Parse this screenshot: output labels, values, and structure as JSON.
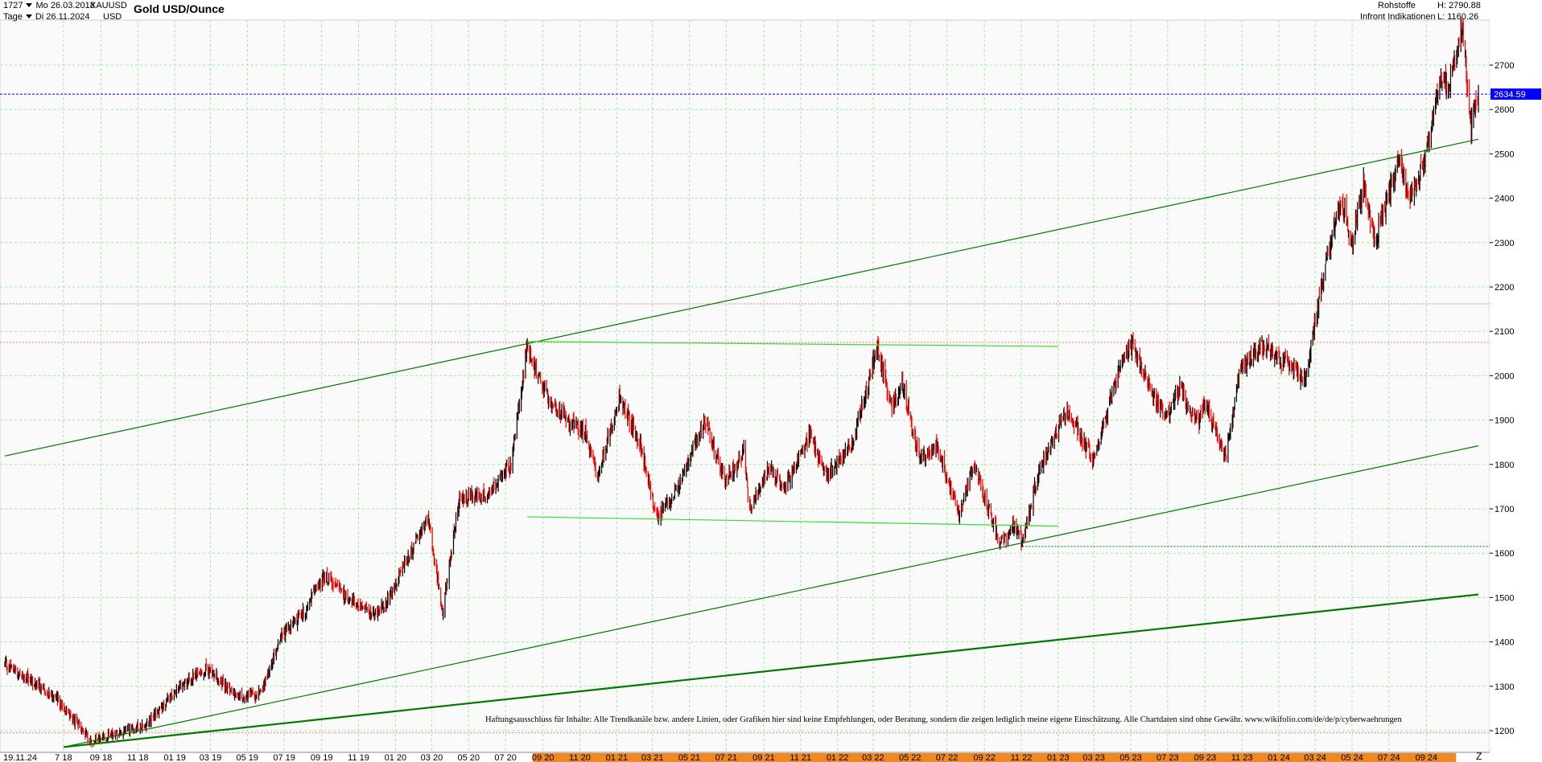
{
  "header": {
    "bar_count": "1727",
    "start_date": "Mo 26.03.2018",
    "symbol": "XAUUSD",
    "interval": "Tage",
    "end_date": "Di 26.11.2024",
    "currency": "USD",
    "title": "Gold USD/Ounce",
    "category": "Rohstoffe",
    "source": "Infront Indikationen",
    "high": "H: 2790.88",
    "low": "L: 1160.26"
  },
  "disclaimer": "Haftungsausschluss für Inhalte: Alle Trendkanäle bzw. andere Linien, oder Grafiken hier sind keine Empfehlungen, oder Beratung, sondern die zeigen lediglich meine eigene Einschätzung. Alle Chartdaten sind ohne Gewähr.   www.wikifolio.com/de/de/p/cyberwaehrungen",
  "bottom_right_letter": "Z",
  "colors": {
    "up": "#000000",
    "down": "#ff0000",
    "grid": "#99ee99",
    "trend": "#007700",
    "range": "#33dd33",
    "price_tag": "#0000ff",
    "dotted_red": "#ff7777",
    "highlight": "#ee8822"
  },
  "chart_data": {
    "type": "candlestick",
    "title": "Gold USD/Ounce",
    "ylim": [
      1150,
      2800
    ],
    "xlim": [
      "2018-03-26",
      "2024-11-26"
    ],
    "y_ticks": [
      1200,
      1300,
      1400,
      1500,
      1600,
      1700,
      1800,
      1900,
      2000,
      2100,
      2200,
      2300,
      2400,
      2500,
      2600,
      2700
    ],
    "x_ticks": [
      {
        "date": "2018-07-01",
        "label": "7 18"
      },
      {
        "date": "2018-09-01",
        "label": "09 18"
      },
      {
        "date": "2018-11-01",
        "label": "11 18"
      },
      {
        "date": "2019-01-01",
        "label": "01 19"
      },
      {
        "date": "2019-03-01",
        "label": "03 19"
      },
      {
        "date": "2019-05-01",
        "label": "05 19"
      },
      {
        "date": "2019-07-01",
        "label": "07 19"
      },
      {
        "date": "2019-09-01",
        "label": "09 19"
      },
      {
        "date": "2019-11-01",
        "label": "11 19"
      },
      {
        "date": "2020-01-01",
        "label": "01 20"
      },
      {
        "date": "2020-03-01",
        "label": "03 20"
      },
      {
        "date": "2020-05-01",
        "label": "05 20"
      },
      {
        "date": "2020-07-01",
        "label": "07 20"
      },
      {
        "date": "2020-09-01",
        "label": "09 20"
      },
      {
        "date": "2020-11-01",
        "label": "11 20"
      },
      {
        "date": "2021-01-01",
        "label": "01 21"
      },
      {
        "date": "2021-03-01",
        "label": "03 21"
      },
      {
        "date": "2021-05-01",
        "label": "05 21"
      },
      {
        "date": "2021-07-01",
        "label": "07 21"
      },
      {
        "date": "2021-09-01",
        "label": "09 21"
      },
      {
        "date": "2021-11-01",
        "label": "11 21"
      },
      {
        "date": "2022-01-01",
        "label": "01 22"
      },
      {
        "date": "2022-03-01",
        "label": "03 22"
      },
      {
        "date": "2022-05-01",
        "label": "05 22"
      },
      {
        "date": "2022-07-01",
        "label": "07 22"
      },
      {
        "date": "2022-09-01",
        "label": "09 22"
      },
      {
        "date": "2022-11-01",
        "label": "11 22"
      },
      {
        "date": "2023-01-01",
        "label": "01 23"
      },
      {
        "date": "2023-03-01",
        "label": "03 23"
      },
      {
        "date": "2023-05-01",
        "label": "05 23"
      },
      {
        "date": "2023-07-01",
        "label": "07 23"
      },
      {
        "date": "2023-09-01",
        "label": "09 23"
      },
      {
        "date": "2023-11-01",
        "label": "11 23"
      },
      {
        "date": "2024-01-01",
        "label": "01 24"
      },
      {
        "date": "2024-03-01",
        "label": "03 24"
      },
      {
        "date": "2024-05-01",
        "label": "05 24"
      },
      {
        "date": "2024-07-01",
        "label": "07 24"
      },
      {
        "date": "2024-09-01",
        "label": "09 24"
      }
    ],
    "cursor_date_label": "19.11.24",
    "highlight_range": [
      "2020-08-15",
      "2024-10-20"
    ],
    "last_price": 2634.59,
    "last_price_label": "2634.59",
    "price_series": [
      {
        "date": "2018-03-26",
        "price": 1350
      },
      {
        "date": "2018-05-01",
        "price": 1318
      },
      {
        "date": "2018-06-15",
        "price": 1280
      },
      {
        "date": "2018-08-16",
        "price": 1175
      },
      {
        "date": "2018-10-01",
        "price": 1195
      },
      {
        "date": "2018-11-15",
        "price": 1215
      },
      {
        "date": "2019-01-01",
        "price": 1285
      },
      {
        "date": "2019-02-20",
        "price": 1340
      },
      {
        "date": "2019-04-20",
        "price": 1275
      },
      {
        "date": "2019-05-25",
        "price": 1285
      },
      {
        "date": "2019-06-25",
        "price": 1410
      },
      {
        "date": "2019-08-05",
        "price": 1470
      },
      {
        "date": "2019-09-05",
        "price": 1550
      },
      {
        "date": "2019-10-15",
        "price": 1500
      },
      {
        "date": "2019-11-20",
        "price": 1465
      },
      {
        "date": "2019-12-15",
        "price": 1480
      },
      {
        "date": "2020-01-10",
        "price": 1560
      },
      {
        "date": "2020-02-24",
        "price": 1680
      },
      {
        "date": "2020-03-19",
        "price": 1470
      },
      {
        "date": "2020-04-15",
        "price": 1720
      },
      {
        "date": "2020-06-01",
        "price": 1730
      },
      {
        "date": "2020-07-10",
        "price": 1800
      },
      {
        "date": "2020-08-06",
        "price": 2067
      },
      {
        "date": "2020-09-01",
        "price": 1965
      },
      {
        "date": "2020-10-10",
        "price": 1900
      },
      {
        "date": "2020-11-10",
        "price": 1870
      },
      {
        "date": "2020-11-30",
        "price": 1775
      },
      {
        "date": "2021-01-05",
        "price": 1950
      },
      {
        "date": "2021-02-10",
        "price": 1840
      },
      {
        "date": "2021-03-08",
        "price": 1680
      },
      {
        "date": "2021-04-10",
        "price": 1740
      },
      {
        "date": "2021-05-25",
        "price": 1900
      },
      {
        "date": "2021-06-30",
        "price": 1765
      },
      {
        "date": "2021-07-30",
        "price": 1825
      },
      {
        "date": "2021-08-09",
        "price": 1700
      },
      {
        "date": "2021-09-10",
        "price": 1790
      },
      {
        "date": "2021-10-05",
        "price": 1745
      },
      {
        "date": "2021-11-15",
        "price": 1865
      },
      {
        "date": "2021-12-15",
        "price": 1775
      },
      {
        "date": "2022-01-25",
        "price": 1845
      },
      {
        "date": "2022-03-08",
        "price": 2065
      },
      {
        "date": "2022-04-01",
        "price": 1925
      },
      {
        "date": "2022-04-18",
        "price": 1990
      },
      {
        "date": "2022-05-16",
        "price": 1810
      },
      {
        "date": "2022-06-15",
        "price": 1840
      },
      {
        "date": "2022-07-21",
        "price": 1690
      },
      {
        "date": "2022-08-15",
        "price": 1800
      },
      {
        "date": "2022-09-28",
        "price": 1620
      },
      {
        "date": "2022-10-20",
        "price": 1660
      },
      {
        "date": "2022-11-03",
        "price": 1625
      },
      {
        "date": "2022-12-01",
        "price": 1790
      },
      {
        "date": "2023-01-15",
        "price": 1920
      },
      {
        "date": "2023-02-28",
        "price": 1810
      },
      {
        "date": "2023-04-13",
        "price": 2020
      },
      {
        "date": "2023-05-04",
        "price": 2070
      },
      {
        "date": "2023-06-05",
        "price": 1960
      },
      {
        "date": "2023-06-29",
        "price": 1905
      },
      {
        "date": "2023-07-20",
        "price": 1975
      },
      {
        "date": "2023-08-20",
        "price": 1890
      },
      {
        "date": "2023-09-01",
        "price": 1940
      },
      {
        "date": "2023-10-05",
        "price": 1820
      },
      {
        "date": "2023-10-27",
        "price": 2005
      },
      {
        "date": "2023-12-04",
        "price": 2070
      },
      {
        "date": "2024-01-10",
        "price": 2030
      },
      {
        "date": "2024-02-14",
        "price": 1990
      },
      {
        "date": "2024-03-08",
        "price": 2180
      },
      {
        "date": "2024-04-12",
        "price": 2400
      },
      {
        "date": "2024-05-02",
        "price": 2300
      },
      {
        "date": "2024-05-20",
        "price": 2440
      },
      {
        "date": "2024-06-07",
        "price": 2300
      },
      {
        "date": "2024-07-17",
        "price": 2480
      },
      {
        "date": "2024-08-05",
        "price": 2400
      },
      {
        "date": "2024-09-01",
        "price": 2500
      },
      {
        "date": "2024-09-26",
        "price": 2680
      },
      {
        "date": "2024-10-07",
        "price": 2640
      },
      {
        "date": "2024-10-30",
        "price": 2790
      },
      {
        "date": "2024-11-14",
        "price": 2560
      },
      {
        "date": "2024-11-26",
        "price": 2634.59
      }
    ],
    "lines": [
      {
        "name": "trend",
        "from": [
          "2018-03-26",
          1819
        ],
        "to": [
          "2024-11-26",
          2533
        ]
      },
      {
        "name": "trend",
        "from": [
          "2018-07-01",
          1163
        ],
        "to": [
          "2024-11-26",
          1842
        ]
      },
      {
        "name": "trend-bold",
        "from": [
          "2018-07-01",
          1163
        ],
        "to": [
          "2024-11-26",
          1507
        ]
      },
      {
        "name": "range",
        "from": [
          "2020-08-06",
          2077
        ],
        "to": [
          "2023-01-01",
          2066
        ]
      },
      {
        "name": "range",
        "from": [
          "2020-08-06",
          1682
        ],
        "to": [
          "2023-01-01",
          1661
        ]
      }
    ],
    "hlines": [
      {
        "y": 2634.59,
        "style": "price"
      },
      {
        "y": 2162,
        "style": "dotted-red"
      },
      {
        "y": 2075,
        "style": "dotted-red"
      },
      {
        "y": 1195,
        "style": "dotted-red"
      },
      {
        "y": 1615,
        "style": "dotted-green",
        "from": "2022-11-03"
      }
    ]
  }
}
